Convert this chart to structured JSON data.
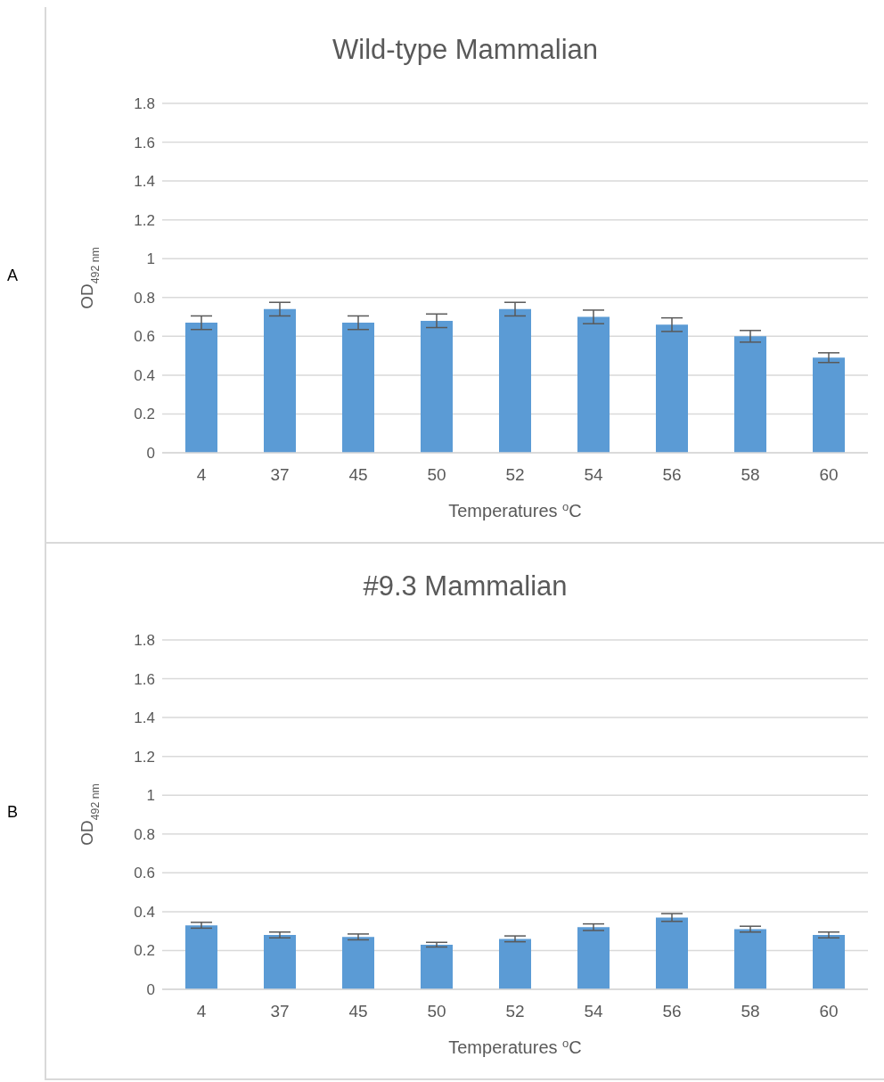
{
  "chart_data": [
    {
      "type": "bar",
      "title": "Wild-type Mammalian",
      "xlabel": "Temperatures $^{o}$C",
      "ylabel": "OD$_{492 nm}$",
      "annotations": [
        "A"
      ],
      "categories": [
        "4",
        "37",
        "45",
        "50",
        "52",
        "54",
        "56",
        "58",
        "60"
      ],
      "values": [
        0.67,
        0.74,
        0.67,
        0.68,
        0.74,
        0.7,
        0.66,
        0.6,
        0.49
      ],
      "errors": [
        0.035,
        0.035,
        0.035,
        0.035,
        0.035,
        0.035,
        0.035,
        0.03,
        0.025
      ],
      "color": "#5b9bd5",
      "ylim": [
        0,
        1.8
      ],
      "yticks": [
        0,
        0.2,
        0.4,
        0.6,
        0.8,
        1,
        1.2,
        1.4,
        1.6,
        1.8
      ],
      "grid": "y"
    },
    {
      "type": "bar",
      "title": "#9.3 Mammalian",
      "xlabel": "Temperatures $^{o}$C",
      "ylabel": "OD$_{492 nm}$",
      "annotations": [
        "B"
      ],
      "categories": [
        "4",
        "37",
        "45",
        "50",
        "52",
        "54",
        "56",
        "58",
        "60"
      ],
      "values": [
        0.33,
        0.28,
        0.27,
        0.23,
        0.26,
        0.32,
        0.37,
        0.31,
        0.28
      ],
      "errors": [
        0.015,
        0.015,
        0.015,
        0.012,
        0.015,
        0.017,
        0.02,
        0.015,
        0.015
      ],
      "color": "#5b9bd5",
      "ylim": [
        0,
        1.8
      ],
      "yticks": [
        0,
        0.2,
        0.4,
        0.6,
        0.8,
        1,
        1.2,
        1.4,
        1.6,
        1.8
      ],
      "grid": "y"
    }
  ]
}
